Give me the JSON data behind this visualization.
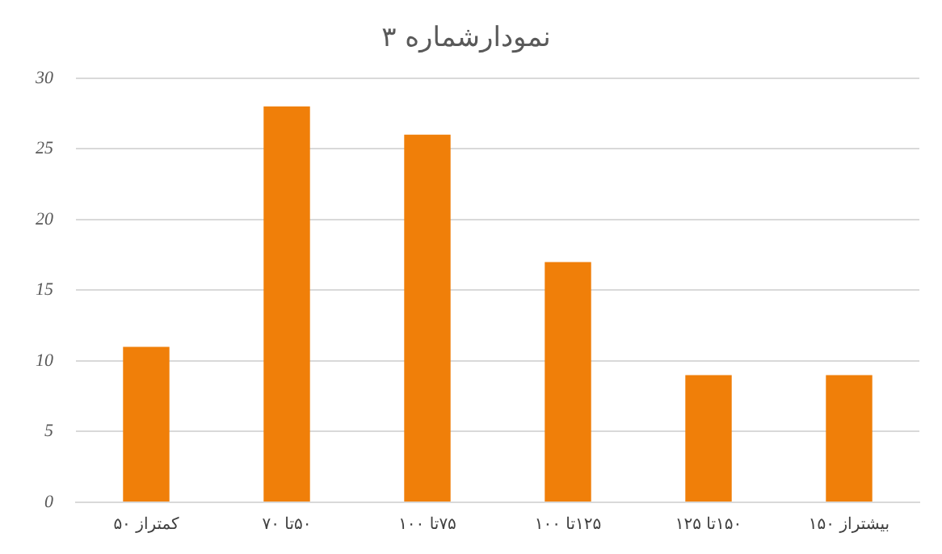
{
  "chart_data": {
    "type": "bar",
    "title": "نمودار‌شماره ۳",
    "categories": [
      "کمتر‌از ۵۰",
      "۵۰‌تا ۷۰",
      "۷۵‌تا ۱۰۰",
      "۱۲۵‌تا ۱۰۰",
      "۱۵۰‌تا ۱۲۵",
      "بیشتر‌از ۱۵۰"
    ],
    "values": [
      11,
      28,
      26,
      17,
      9,
      9
    ],
    "color": "#f07f09",
    "ylim": [
      0,
      30
    ],
    "yticks": [
      0,
      5,
      10,
      15,
      20,
      25,
      30
    ],
    "grid": "y",
    "legend": false
  }
}
